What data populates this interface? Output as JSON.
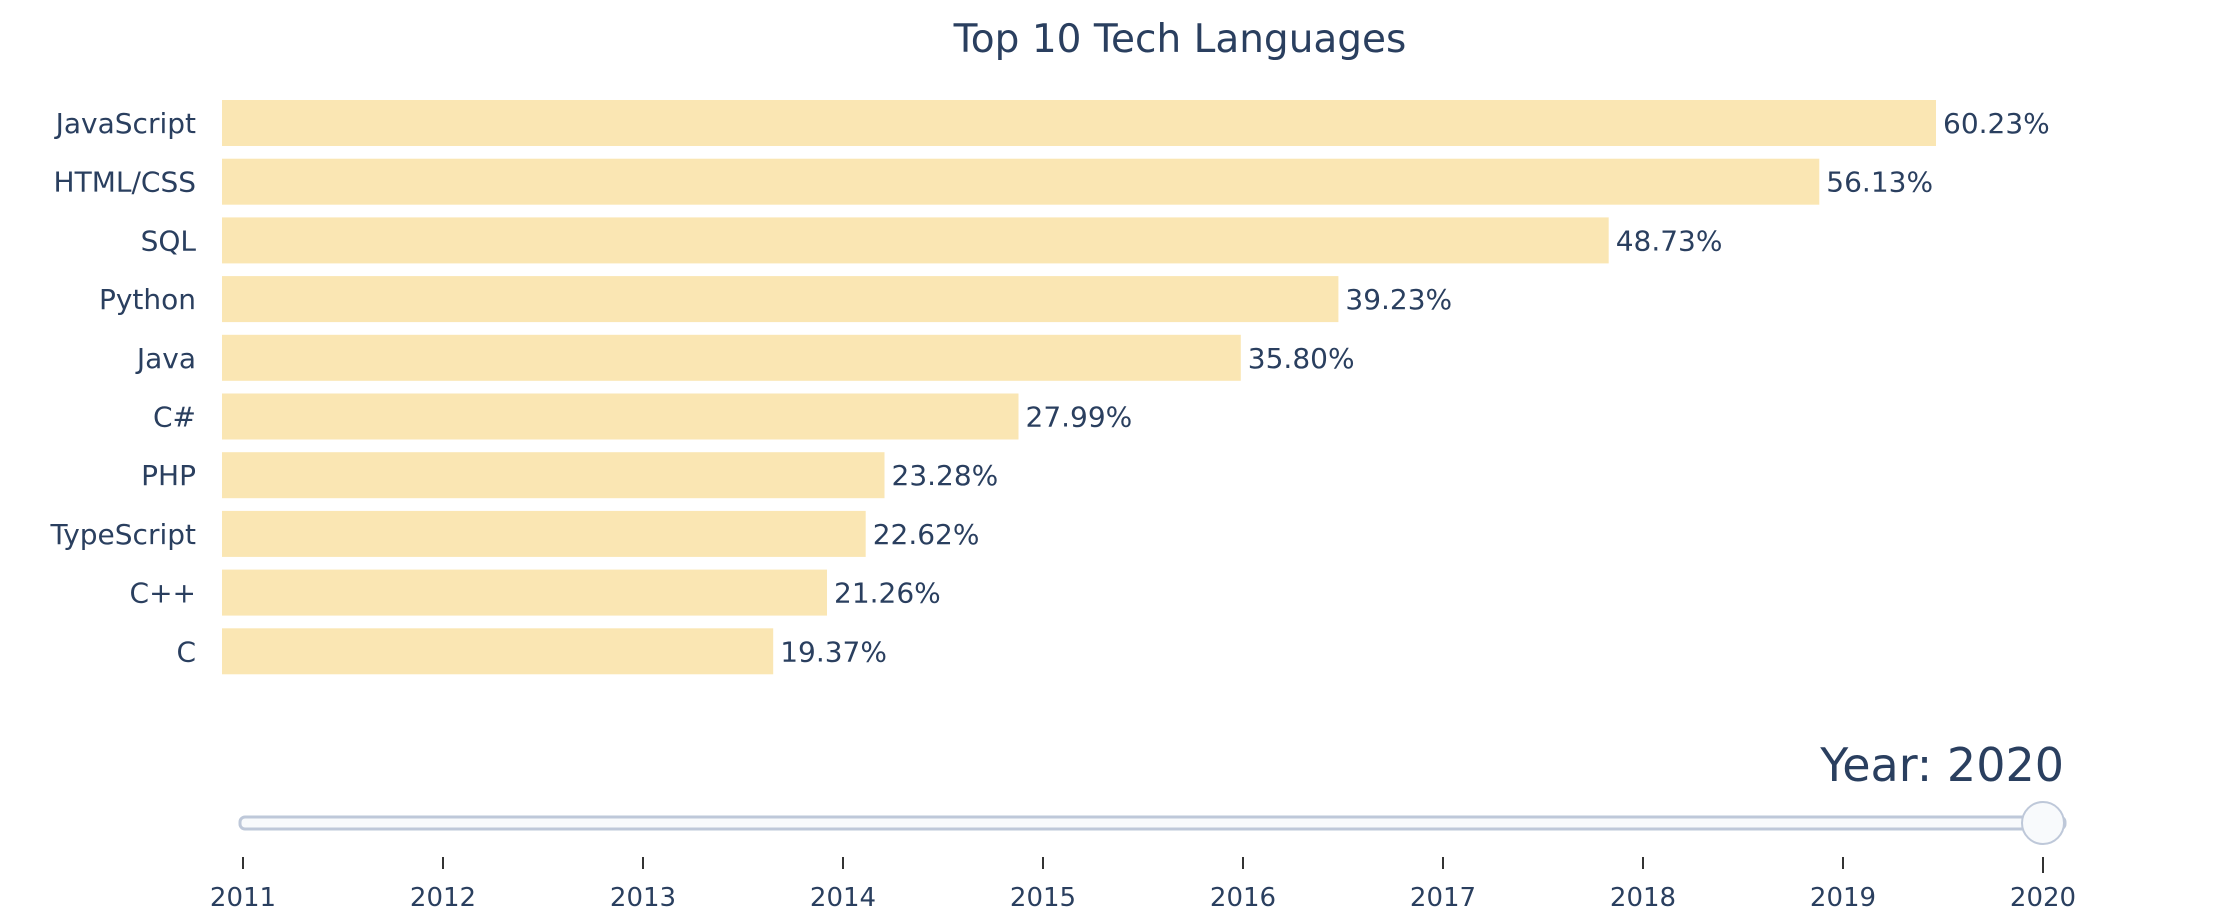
{
  "chart_data": {
    "type": "bar",
    "orientation": "horizontal",
    "title": "Top 10 Tech Languages",
    "categories": [
      "JavaScript",
      "HTML/CSS",
      "SQL",
      "Python",
      "Java",
      "C#",
      "PHP",
      "TypeScript",
      "C++",
      "C"
    ],
    "values": [
      60.23,
      56.13,
      48.73,
      39.23,
      35.8,
      27.99,
      23.28,
      22.62,
      21.26,
      19.37
    ],
    "value_labels": [
      "60.23%",
      "56.13%",
      "48.73%",
      "39.23%",
      "35.80%",
      "27.99%",
      "23.28%",
      "22.62%",
      "21.26%",
      "19.37%"
    ],
    "xlim": [
      0,
      60.23
    ],
    "bar_color": "#fae6b3",
    "xlabel": "",
    "ylabel": "",
    "grid": false
  },
  "slider": {
    "current_label": "Year: 2020",
    "current_value": 2020,
    "steps": [
      "2011",
      "2012",
      "2013",
      "2014",
      "2015",
      "2016",
      "2017",
      "2018",
      "2019",
      "2020"
    ]
  }
}
